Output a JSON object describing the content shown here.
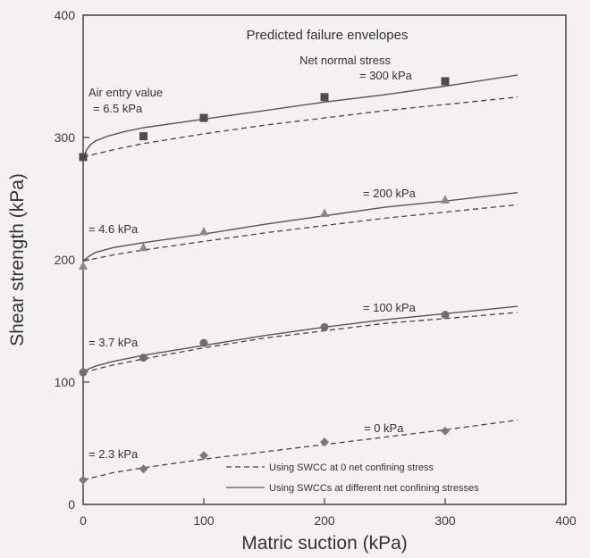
{
  "chart_data": {
    "type": "line",
    "title": "Predicted failure envelopes",
    "xlabel": "Matric suction (kPa)",
    "ylabel": "Shear strength (kPa)",
    "xlim": [
      0,
      400
    ],
    "ylim": [
      0,
      400
    ],
    "x_ticks": [
      "0",
      "100",
      "200",
      "300",
      "400"
    ],
    "y_ticks": [
      "0",
      "100",
      "200",
      "300",
      "400"
    ],
    "grid": false,
    "legend_position": "bottom-right",
    "legend_title": "Net normal stress",
    "air_entry_label": "Air entry value",
    "legend": {
      "dashed": "Using SWCC at 0 net confining stress",
      "solid": "Using SWCCs at different net confining stresses"
    },
    "series": [
      {
        "normal_stress_label": "= 0 kPa",
        "air_entry_text": "= 2.3 kPa",
        "marker": "diamond",
        "measured": {
          "x": [
            0,
            50,
            100,
            200,
            300
          ],
          "y": [
            20,
            29,
            40,
            51,
            60
          ]
        },
        "dashed_curve": {
          "x": [
            0,
            25,
            50,
            100,
            150,
            200,
            250,
            300,
            360
          ],
          "y": [
            20,
            26,
            30,
            37,
            43,
            49,
            55,
            61,
            69
          ]
        }
      },
      {
        "normal_stress_label": "= 100 kPa",
        "air_entry_text": "= 3.7 kPa",
        "marker": "circle",
        "measured": {
          "x": [
            0,
            50,
            100,
            200,
            300
          ],
          "y": [
            108,
            120,
            132,
            145,
            155
          ]
        },
        "solid_curve": {
          "x": [
            0,
            5,
            10,
            25,
            50,
            100,
            150,
            200,
            250,
            300,
            360
          ],
          "y": [
            108,
            111,
            113,
            117,
            122,
            130,
            138,
            145,
            151,
            156,
            162
          ]
        },
        "dashed_curve": {
          "x": [
            0,
            25,
            50,
            100,
            150,
            200,
            250,
            300,
            360
          ],
          "y": [
            108,
            114,
            119,
            128,
            136,
            142,
            148,
            152,
            157
          ]
        }
      },
      {
        "normal_stress_label": "= 200 kPa",
        "air_entry_text": "= 4.6 kPa",
        "marker": "triangle",
        "measured": {
          "x": [
            0,
            50,
            100,
            200,
            300
          ],
          "y": [
            195,
            210,
            223,
            238,
            249
          ]
        },
        "solid_curve": {
          "x": [
            0,
            5,
            10,
            25,
            50,
            100,
            150,
            200,
            250,
            300,
            360
          ],
          "y": [
            199,
            203,
            206,
            210,
            214,
            221,
            229,
            236,
            243,
            248,
            255
          ]
        },
        "dashed_curve": {
          "x": [
            0,
            25,
            50,
            100,
            150,
            200,
            250,
            300,
            360
          ],
          "y": [
            199,
            204,
            208,
            215,
            222,
            228,
            234,
            239,
            245
          ]
        }
      },
      {
        "normal_stress_label": "= 300 kPa",
        "air_entry_text": "= 6.5 kPa",
        "marker": "square",
        "measured": {
          "x": [
            0,
            50,
            100,
            200,
            300
          ],
          "y": [
            284,
            301,
            316,
            333,
            346
          ]
        },
        "solid_curve": {
          "x": [
            0,
            3,
            6,
            10,
            20,
            35,
            50,
            100,
            150,
            200,
            250,
            300,
            360
          ],
          "y": [
            284,
            290,
            294,
            297,
            301,
            305,
            308,
            315,
            322,
            329,
            335,
            342,
            351
          ]
        },
        "dashed_curve": {
          "x": [
            0,
            25,
            50,
            100,
            150,
            200,
            250,
            300,
            360
          ],
          "y": [
            284,
            290,
            295,
            303,
            310,
            316,
            322,
            327,
            333
          ]
        }
      }
    ]
  }
}
